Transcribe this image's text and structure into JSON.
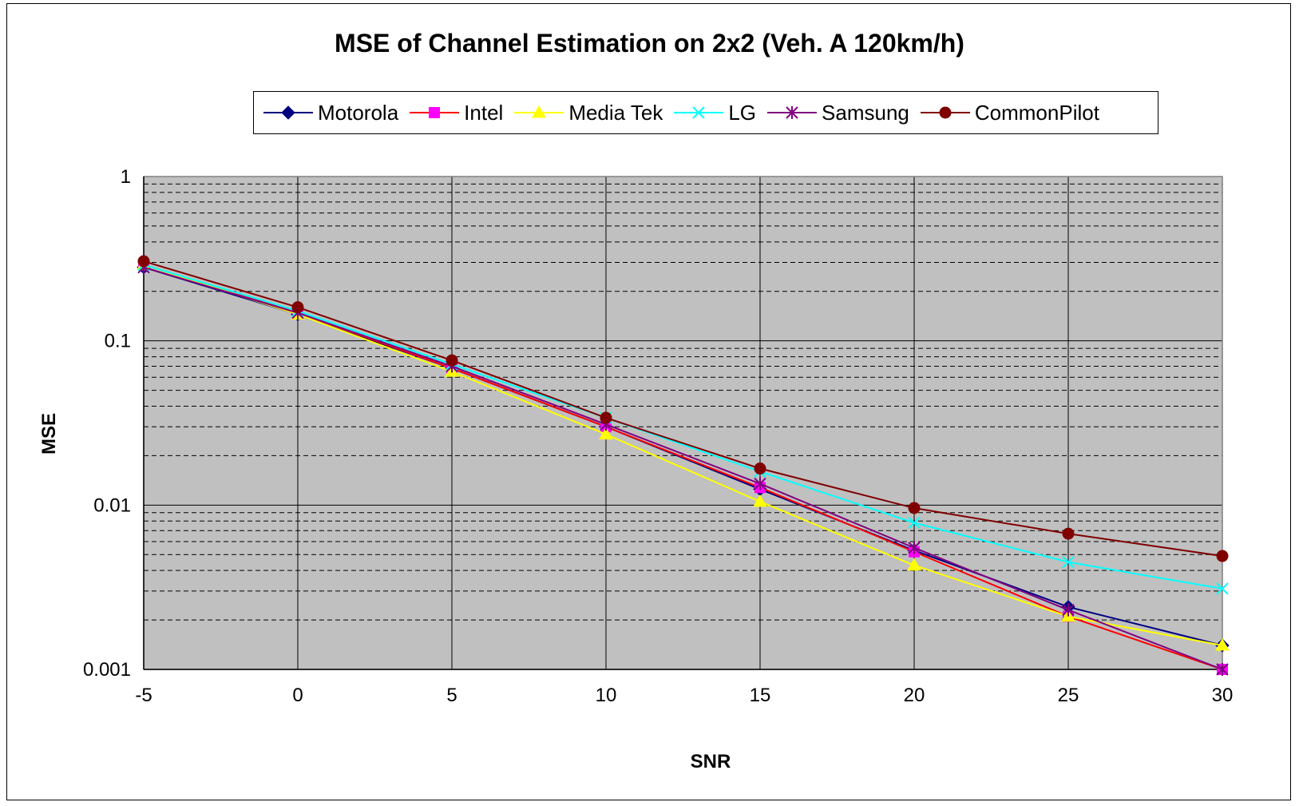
{
  "chart_data": {
    "type": "line",
    "title": "MSE of Channel Estimation on 2x2 (Veh. A 120km/h)",
    "xlabel": "SNR",
    "ylabel": "MSE",
    "x": [
      -5,
      0,
      5,
      10,
      15,
      20,
      25,
      30
    ],
    "x_ticks": [
      "-5",
      "0",
      "5",
      "10",
      "15",
      "20",
      "25",
      "30"
    ],
    "y_ticks": [
      "1",
      "0.1",
      "0.01",
      "0.001"
    ],
    "y_scale": "log",
    "ylim": [
      0.001,
      1
    ],
    "xlim": [
      -5,
      30
    ],
    "grid": true,
    "legend_position": "top",
    "plot_background": "#c0c0c0",
    "series": [
      {
        "name": "Motorola",
        "color": "#000080",
        "marker": "diamond",
        "values": [
          0.28,
          0.145,
          0.068,
          0.03,
          0.0125,
          0.0053,
          0.0024,
          0.0014
        ]
      },
      {
        "name": "Intel",
        "color": "#ff0000",
        "marker": "square",
        "marker_color": "#ff00ff",
        "values": [
          0.29,
          0.148,
          0.068,
          0.03,
          0.0128,
          0.0052,
          0.0021,
          0.001
        ]
      },
      {
        "name": "Media Tek",
        "color": "#ffff00",
        "marker": "triangle",
        "values": [
          0.29,
          0.145,
          0.065,
          0.027,
          0.0105,
          0.0043,
          0.0021,
          0.0014
        ]
      },
      {
        "name": "LG",
        "color": "#00ffff",
        "marker": "x",
        "values": [
          0.29,
          0.152,
          0.072,
          0.034,
          0.016,
          0.0078,
          0.0045,
          0.0031
        ]
      },
      {
        "name": "Samsung",
        "color": "#800080",
        "marker": "star",
        "values": [
          0.28,
          0.148,
          0.07,
          0.031,
          0.0135,
          0.0055,
          0.0023,
          0.001
        ]
      },
      {
        "name": "CommonPilot",
        "color": "#800000",
        "marker": "circle",
        "values": [
          0.305,
          0.16,
          0.076,
          0.034,
          0.0167,
          0.0096,
          0.0067,
          0.0049
        ]
      }
    ]
  }
}
